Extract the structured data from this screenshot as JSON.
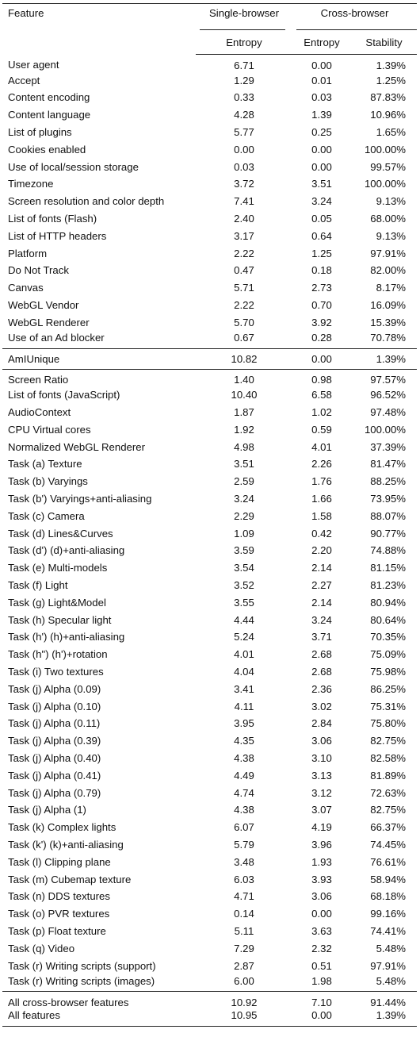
{
  "header": {
    "feature": "Feature",
    "single_browser": "Single-browser",
    "cross_browser": "Cross-browser",
    "entropy_1": "Entropy",
    "entropy_2": "Entropy",
    "stability": "Stability"
  },
  "groups": [
    {
      "rows": [
        [
          "User agent",
          "6.71",
          "0.00",
          "1.39%"
        ],
        [
          "Accept",
          "1.29",
          "0.01",
          "1.25%"
        ],
        [
          "Content encoding",
          "0.33",
          "0.03",
          "87.83%"
        ],
        [
          "Content language",
          "4.28",
          "1.39",
          "10.96%"
        ],
        [
          "List of plugins",
          "5.77",
          "0.25",
          "1.65%"
        ],
        [
          "Cookies enabled",
          "0.00",
          "0.00",
          "100.00%"
        ],
        [
          "Use of local/session storage",
          "0.03",
          "0.00",
          "99.57%"
        ],
        [
          "Timezone",
          "3.72",
          "3.51",
          "100.00%"
        ],
        [
          "Screen resolution and color depth",
          "7.41",
          "3.24",
          "9.13%"
        ],
        [
          "List of fonts (Flash)",
          "2.40",
          "0.05",
          "68.00%"
        ],
        [
          "List of HTTP headers",
          "3.17",
          "0.64",
          "9.13%"
        ],
        [
          "Platform",
          "2.22",
          "1.25",
          "97.91%"
        ],
        [
          "Do Not Track",
          "0.47",
          "0.18",
          "82.00%"
        ],
        [
          "Canvas",
          "5.71",
          "2.73",
          "8.17%"
        ],
        [
          "WebGL Vendor",
          "2.22",
          "0.70",
          "16.09%"
        ],
        [
          "WebGL Renderer",
          "5.70",
          "3.92",
          "15.39%"
        ],
        [
          "Use of an Ad blocker",
          "0.67",
          "0.28",
          "70.78%"
        ]
      ]
    },
    {
      "rows": [
        [
          "AmIUnique",
          "10.82",
          "0.00",
          "1.39%"
        ]
      ]
    },
    {
      "rows": [
        [
          "Screen Ratio",
          "1.40",
          "0.98",
          "97.57%"
        ],
        [
          "List of fonts (JavaScript)",
          "10.40",
          "6.58",
          "96.52%"
        ],
        [
          "AudioContext",
          "1.87",
          "1.02",
          "97.48%"
        ],
        [
          "CPU Virtual cores",
          "1.92",
          "0.59",
          "100.00%"
        ],
        [
          "Normalized WebGL Renderer",
          "4.98",
          "4.01",
          "37.39%"
        ],
        [
          "Task (a) Texture",
          "3.51",
          "2.26",
          "81.47%"
        ],
        [
          "Task (b) Varyings",
          "2.59",
          "1.76",
          "88.25%"
        ],
        [
          "Task (b') Varyings+anti-aliasing",
          "3.24",
          "1.66",
          "73.95%"
        ],
        [
          "Task (c) Camera",
          "2.29",
          "1.58",
          "88.07%"
        ],
        [
          "Task (d) Lines&Curves",
          "1.09",
          "0.42",
          "90.77%"
        ],
        [
          "Task (d') (d)+anti-aliasing",
          "3.59",
          "2.20",
          "74.88%"
        ],
        [
          "Task (e) Multi-models",
          "3.54",
          "2.14",
          "81.15%"
        ],
        [
          "Task (f) Light",
          "3.52",
          "2.27",
          "81.23%"
        ],
        [
          "Task (g) Light&Model",
          "3.55",
          "2.14",
          "80.94%"
        ],
        [
          "Task (h) Specular light",
          "4.44",
          "3.24",
          "80.64%"
        ],
        [
          "Task (h') (h)+anti-aliasing",
          "5.24",
          "3.71",
          "70.35%"
        ],
        [
          "Task (h\") (h')+rotation",
          "4.01",
          "2.68",
          "75.09%"
        ],
        [
          "Task (i) Two textures",
          "4.04",
          "2.68",
          "75.98%"
        ],
        [
          "Task (j) Alpha (0.09)",
          "3.41",
          "2.36",
          "86.25%"
        ],
        [
          "Task (j) Alpha (0.10)",
          "4.11",
          "3.02",
          "75.31%"
        ],
        [
          "Task (j) Alpha (0.11)",
          "3.95",
          "2.84",
          "75.80%"
        ],
        [
          "Task (j) Alpha (0.39)",
          "4.35",
          "3.06",
          "82.75%"
        ],
        [
          "Task (j) Alpha (0.40)",
          "4.38",
          "3.10",
          "82.58%"
        ],
        [
          "Task (j) Alpha (0.41)",
          "4.49",
          "3.13",
          "81.89%"
        ],
        [
          "Task (j) Alpha (0.79)",
          "4.74",
          "3.12",
          "72.63%"
        ],
        [
          "Task (j) Alpha (1)",
          "4.38",
          "3.07",
          "82.75%"
        ],
        [
          "Task (k) Complex lights",
          "6.07",
          "4.19",
          "66.37%"
        ],
        [
          "Task (k') (k)+anti-aliasing",
          "5.79",
          "3.96",
          "74.45%"
        ],
        [
          "Task (l) Clipping plane",
          "3.48",
          "1.93",
          "76.61%"
        ],
        [
          "Task (m) Cubemap texture",
          "6.03",
          "3.93",
          "58.94%"
        ],
        [
          "Task (n) DDS textures",
          "4.71",
          "3.06",
          "68.18%"
        ],
        [
          "Task (o) PVR textures",
          "0.14",
          "0.00",
          "99.16%"
        ],
        [
          "Task (p) Float texture",
          "5.11",
          "3.63",
          "74.41%"
        ],
        [
          "Task (q) Video",
          "7.29",
          "2.32",
          "5.48%"
        ],
        [
          "Task (r) Writing scripts (support)",
          "2.87",
          "0.51",
          "97.91%"
        ],
        [
          "Task (r) Writing scripts (images)",
          "6.00",
          "1.98",
          "5.48%"
        ]
      ]
    },
    {
      "rows": [
        [
          "All cross-browser features",
          "10.92",
          "7.10",
          "91.44%"
        ],
        [
          "All features",
          "10.95",
          "0.00",
          "1.39%"
        ]
      ]
    }
  ]
}
